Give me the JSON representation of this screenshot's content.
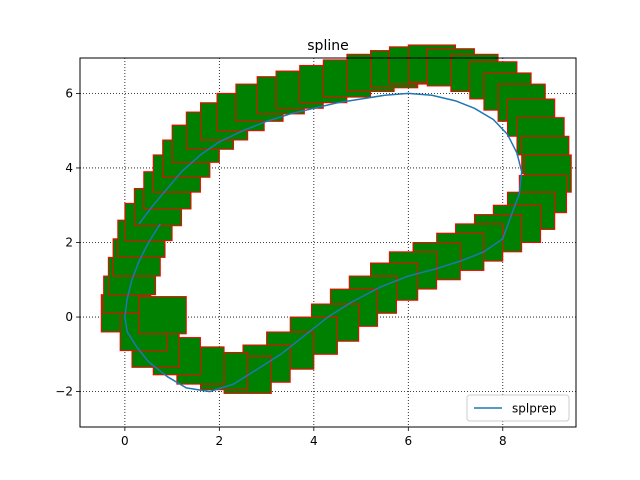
{
  "chart_data": {
    "type": "line",
    "title": "spline",
    "xlabel": "",
    "ylabel": "",
    "xlim": [
      -0.95,
      9.55
    ],
    "ylim": [
      -2.95,
      6.95
    ],
    "xticks": [
      0,
      2,
      4,
      6,
      8
    ],
    "yticks": [
      -2,
      0,
      2,
      4,
      6
    ],
    "xtick_labels": [
      "0",
      "2",
      "4",
      "6",
      "8"
    ],
    "ytick_labels": [
      "−2",
      "0",
      "2",
      "4",
      "6"
    ],
    "grid": true,
    "grid_style": "dotted",
    "legend_position": "lower-right",
    "box_size": [
      1.0,
      1.0
    ],
    "box_fill_color": "#008000",
    "box_edge_color": "#ff0000",
    "series": [
      {
        "name": "splprep",
        "color": "#1f77b4",
        "x": [
          0.3,
          0.6,
          0.9,
          1.2,
          1.6,
          2.0,
          2.5,
          3.0,
          3.5,
          4.0,
          4.5,
          5.0,
          5.5,
          6.0,
          6.5,
          7.0,
          7.4,
          7.8,
          8.1,
          8.3,
          8.4,
          8.35,
          8.2,
          8.0,
          7.6,
          7.1,
          6.6,
          6.0,
          5.4,
          4.8,
          4.3,
          3.8,
          3.3,
          2.8,
          2.3,
          1.8,
          1.3,
          0.9,
          0.5,
          0.25,
          0.05,
          0.0,
          0.05,
          0.15,
          0.3,
          0.5,
          0.75
        ],
        "y": [
          2.5,
          3.0,
          3.45,
          3.9,
          4.35,
          4.7,
          5.0,
          5.25,
          5.45,
          5.6,
          5.75,
          5.85,
          5.95,
          6.0,
          5.95,
          5.8,
          5.6,
          5.3,
          4.9,
          4.4,
          3.9,
          3.3,
          2.8,
          2.1,
          1.75,
          1.5,
          1.3,
          1.1,
          0.8,
          0.4,
          0.0,
          -0.5,
          -1.0,
          -1.4,
          -1.8,
          -2.0,
          -1.9,
          -1.6,
          -1.2,
          -0.8,
          -0.4,
          0.0,
          0.5,
          1.0,
          1.5,
          2.0,
          2.5
        ]
      }
    ],
    "boxes": [
      {
        "x": -0.5,
        "y": -0.4
      },
      {
        "x": -0.45,
        "y": 0.1
      },
      {
        "x": -0.35,
        "y": 0.6
      },
      {
        "x": -0.25,
        "y": 1.1
      },
      {
        "x": -0.15,
        "y": 1.6
      },
      {
        "x": 0.0,
        "y": 2.05
      },
      {
        "x": 0.2,
        "y": 2.45
      },
      {
        "x": 0.4,
        "y": 2.9
      },
      {
        "x": 0.6,
        "y": 3.35
      },
      {
        "x": 0.8,
        "y": 3.75
      },
      {
        "x": 1.0,
        "y": 4.15
      },
      {
        "x": 1.3,
        "y": 4.5
      },
      {
        "x": 1.6,
        "y": 4.75
      },
      {
        "x": 1.95,
        "y": 5.0
      },
      {
        "x": 2.35,
        "y": 5.25
      },
      {
        "x": 2.8,
        "y": 5.45
      },
      {
        "x": 3.2,
        "y": 5.6
      },
      {
        "x": 3.7,
        "y": 5.75
      },
      {
        "x": 4.2,
        "y": 5.9
      },
      {
        "x": 4.7,
        "y": 6.05
      },
      {
        "x": 5.2,
        "y": 6.15
      },
      {
        "x": 5.6,
        "y": 6.25
      },
      {
        "x": 6.0,
        "y": 6.3
      },
      {
        "x": 6.4,
        "y": 6.2
      },
      {
        "x": 6.9,
        "y": 6.05
      },
      {
        "x": 7.3,
        "y": 5.85
      },
      {
        "x": 7.6,
        "y": 5.55
      },
      {
        "x": 7.9,
        "y": 5.25
      },
      {
        "x": 8.1,
        "y": 4.85
      },
      {
        "x": 8.3,
        "y": 4.35
      },
      {
        "x": 8.4,
        "y": 3.85
      },
      {
        "x": 8.45,
        "y": 3.35
      },
      {
        "x": 8.35,
        "y": 2.8
      },
      {
        "x": 8.1,
        "y": 2.35
      },
      {
        "x": 7.8,
        "y": 2.0
      },
      {
        "x": 7.4,
        "y": 1.75
      },
      {
        "x": 7.0,
        "y": 1.5
      },
      {
        "x": 6.6,
        "y": 1.25
      },
      {
        "x": 6.1,
        "y": 1.0
      },
      {
        "x": 5.6,
        "y": 0.75
      },
      {
        "x": 5.2,
        "y": 0.45
      },
      {
        "x": 4.75,
        "y": 0.1
      },
      {
        "x": 4.35,
        "y": -0.25
      },
      {
        "x": 3.95,
        "y": -0.65
      },
      {
        "x": 3.5,
        "y": -1.0
      },
      {
        "x": 3.0,
        "y": -1.4
      },
      {
        "x": 2.5,
        "y": -1.75
      },
      {
        "x": 2.1,
        "y": -2.05
      },
      {
        "x": 1.6,
        "y": -1.95
      },
      {
        "x": 1.1,
        "y": -1.8
      },
      {
        "x": 0.6,
        "y": -1.55
      },
      {
        "x": 0.15,
        "y": -1.35
      },
      {
        "x": -0.1,
        "y": -0.9
      },
      {
        "x": 0.3,
        "y": -0.45
      }
    ]
  }
}
